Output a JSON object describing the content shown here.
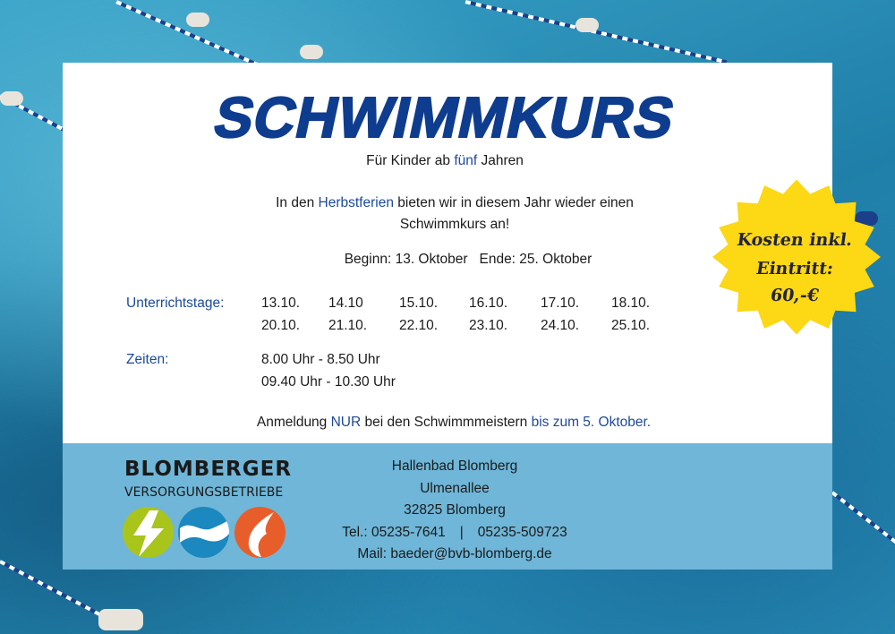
{
  "title": "SCHWIMMKURS",
  "subtitle": {
    "pre": "Für Kinder ab ",
    "highlight": "fünf",
    "post": " Jahren"
  },
  "intro": {
    "pre": "In den ",
    "highlight": "Herbstferien",
    "post": " bieten wir in diesem Jahr wieder einen",
    "line2": "Schwimmkurs an!"
  },
  "dates": "Beginn: 13. Oktober   Ende: 25. Oktober",
  "schedule": {
    "days_label": "Unterrichtstage:",
    "days": [
      [
        "13.10.",
        "14.10",
        "15.10.",
        "16.10.",
        "17.10.",
        "18.10."
      ],
      [
        "20.10.",
        "21.10.",
        "22.10.",
        "23.10.",
        "24.10.",
        "25.10."
      ]
    ],
    "times_label": "Zeiten:",
    "times": [
      "8.00 Uhr - 8.50 Uhr",
      "09.40 Uhr - 10.30 Uhr"
    ]
  },
  "registration": {
    "pre": "Anmeldung ",
    "h1": "NUR",
    "mid": " bei den Schwimmmeistern ",
    "h2": "bis zum 5. Oktober."
  },
  "price_badge": {
    "line1": "Kosten inkl.",
    "line2": "Eintritt:",
    "line3": "60,-€",
    "color": "#fcd815"
  },
  "footer": {
    "logo_name": "BLOMBERGER",
    "logo_sub": "VERSORGUNGSBETRIEBE",
    "logo_icons": [
      "lightning-icon",
      "water-wave-icon",
      "flame-icon"
    ],
    "address": [
      "Hallenbad Blomberg",
      "Ulmenallee",
      "32825 Blomberg"
    ],
    "phone": {
      "label": "Tel.: ",
      "n1": "05235-7641",
      "sep": "|",
      "n2": "05235-509723"
    },
    "mail": {
      "label": "Mail: ",
      "address": "baeder@bvb-blomberg.de"
    }
  },
  "colors": {
    "title": "#0e3c8e",
    "footer": "#6fb6d8",
    "accent_text": "#1c4a9a"
  }
}
